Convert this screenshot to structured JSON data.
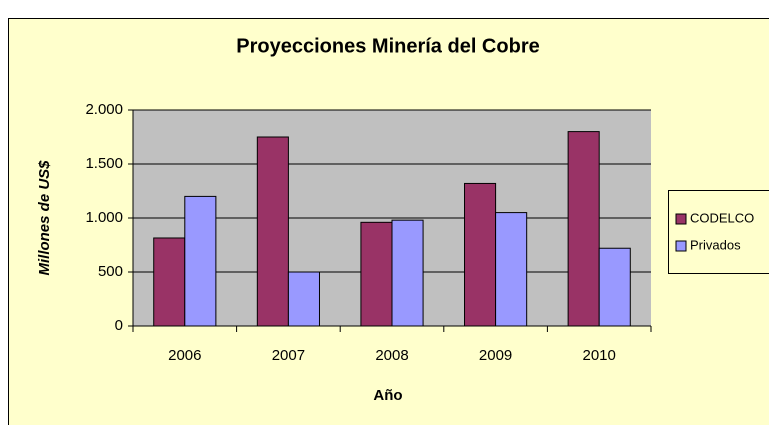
{
  "chart_data": {
    "type": "bar",
    "title": "Proyecciones Minería del Cobre",
    "x_label": "Año",
    "y_label": "Millones de US$",
    "categories": [
      "2006",
      "2007",
      "2008",
      "2009",
      "2010"
    ],
    "series": [
      {
        "name": "CODELCO",
        "color": "#993366",
        "values": [
          815,
          1750,
          960,
          1320,
          1800
        ]
      },
      {
        "name": "Privados",
        "color": "#9999ff",
        "values": [
          1200,
          500,
          980,
          1050,
          720
        ]
      }
    ],
    "ylim": [
      0,
      2000
    ],
    "yticks": [
      0,
      500,
      {
        "value": 1000,
        "label": "1.000"
      },
      {
        "value": 1500,
        "label": "1.500"
      },
      {
        "value": 2000,
        "label": "2.000"
      }
    ],
    "grid": true,
    "legend": "right"
  }
}
